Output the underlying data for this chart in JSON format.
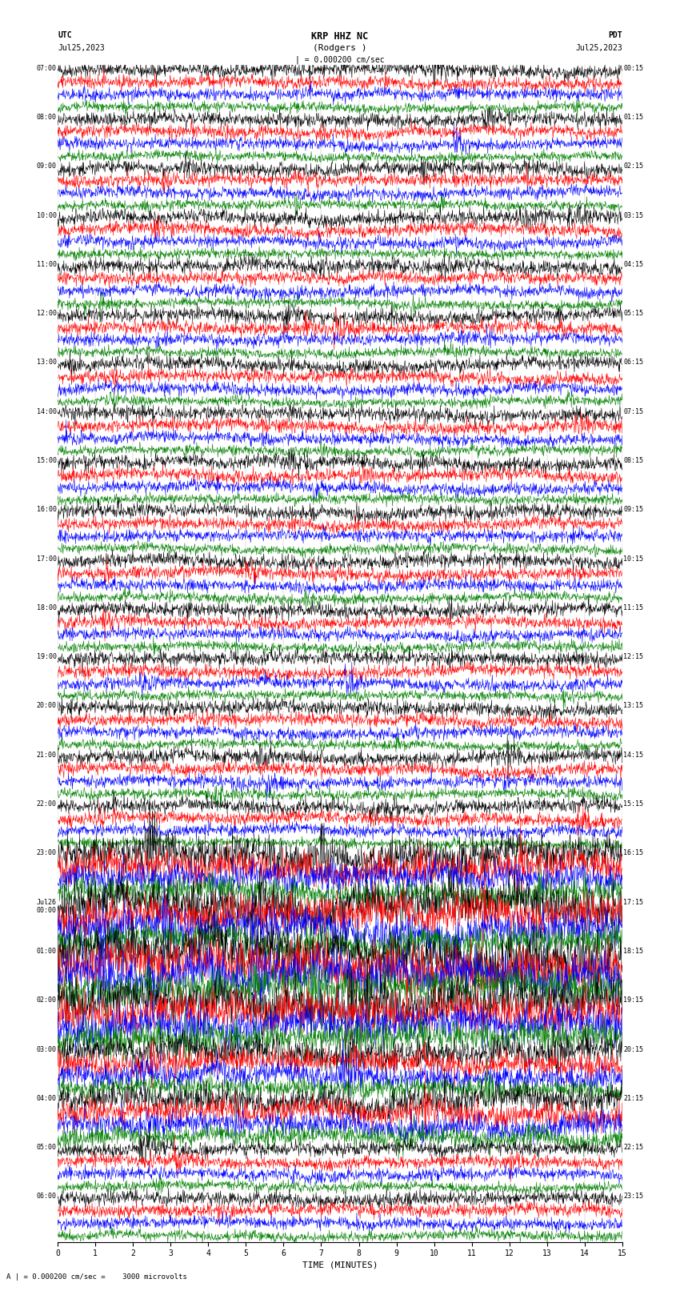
{
  "title_line1": "KRP HHZ NC",
  "title_line2": "(Rodgers )",
  "scale_label": "| = 0.000200 cm/sec",
  "left_header": "UTC",
  "left_date": "Jul25,2023",
  "right_header": "PDT",
  "right_date": "Jul25,2023",
  "bottom_label": "TIME (MINUTES)",
  "bottom_note": "A | = 0.000200 cm/sec =    3000 microvolts",
  "x_min": 0,
  "x_max": 15,
  "x_ticks": [
    0,
    1,
    2,
    3,
    4,
    5,
    6,
    7,
    8,
    9,
    10,
    11,
    12,
    13,
    14,
    15
  ],
  "colors": [
    "black",
    "red",
    "blue",
    "green"
  ],
  "num_groups": 24,
  "background": "white",
  "utc_labels": [
    "07:00",
    "08:00",
    "09:00",
    "10:00",
    "11:00",
    "12:00",
    "13:00",
    "14:00",
    "15:00",
    "16:00",
    "17:00",
    "18:00",
    "19:00",
    "20:00",
    "21:00",
    "22:00",
    "23:00",
    "Jul26\n00:00",
    "01:00",
    "02:00",
    "03:00",
    "04:00",
    "05:00",
    "06:00"
  ],
  "pdt_labels": [
    "00:15",
    "01:15",
    "02:15",
    "03:15",
    "04:15",
    "05:15",
    "06:15",
    "07:15",
    "08:15",
    "09:15",
    "10:15",
    "11:15",
    "12:15",
    "13:15",
    "14:15",
    "15:15",
    "16:15",
    "17:15",
    "18:15",
    "19:15",
    "20:15",
    "21:15",
    "22:15",
    "23:15"
  ],
  "seed": 42,
  "n_points": 1500
}
